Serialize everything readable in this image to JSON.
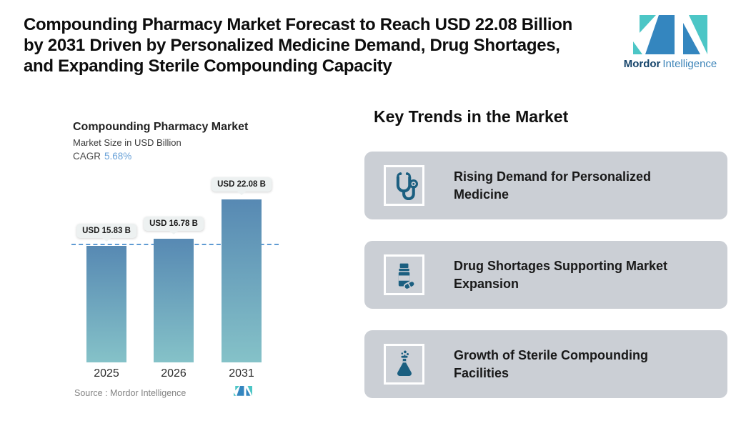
{
  "header": {
    "title_lines": [
      "Compounding Pharmacy Market Forecast to Reach USD 22.08 Billion",
      "by 2031 Driven by Personalized Medicine Demand, Drug Shortages,",
      "and Expanding Sterile Compounding Capacity"
    ],
    "logo": {
      "brand_bold": "Mordor",
      "brand_light": "Intelligence"
    }
  },
  "chart": {
    "title": "Compounding Pharmacy Market",
    "subtitle": "Market Size in USD Billion",
    "cagr_label": "CAGR",
    "cagr_value": "5.68%",
    "source_label": "Source :  Mordor Intelligence"
  },
  "chart_data": {
    "type": "bar",
    "title": "Compounding Pharmacy Market",
    "subtitle": "Market Size in USD Billion",
    "unit": "USD Billion",
    "cagr_percent": 5.68,
    "categories": [
      "2025",
      "2026",
      "2031"
    ],
    "values": [
      15.83,
      16.78,
      22.08
    ],
    "data_labels": [
      "USD 15.83 B",
      "USD 16.78 B",
      "USD 22.08 B"
    ],
    "reference_line": {
      "value": 15.83,
      "style": "dashed"
    },
    "ylim": [
      0,
      22.08
    ],
    "grid": false,
    "legend": false,
    "bar_gradient": [
      "#5789b3",
      "#85c2c8"
    ]
  },
  "trends": {
    "heading": "Key Trends in the Market",
    "cards": [
      {
        "icon": "stethoscope-icon",
        "label": "Rising Demand for Personalized Medicine"
      },
      {
        "icon": "pill-bottle-icon",
        "label": "Drug Shortages Supporting Market Expansion"
      },
      {
        "icon": "flask-icon",
        "label": "Growth of Sterile Compounding Facilities"
      }
    ]
  },
  "colors": {
    "logo_blue": "#3486bf",
    "logo_teal": "#4cc6c6",
    "icon_teal": "#1b5f80",
    "card_bg": "#cbcfd5",
    "dashed_line": "#5f9bd3",
    "cagr_value": "#6aa2d8",
    "title_text": "#0d0d0d"
  }
}
